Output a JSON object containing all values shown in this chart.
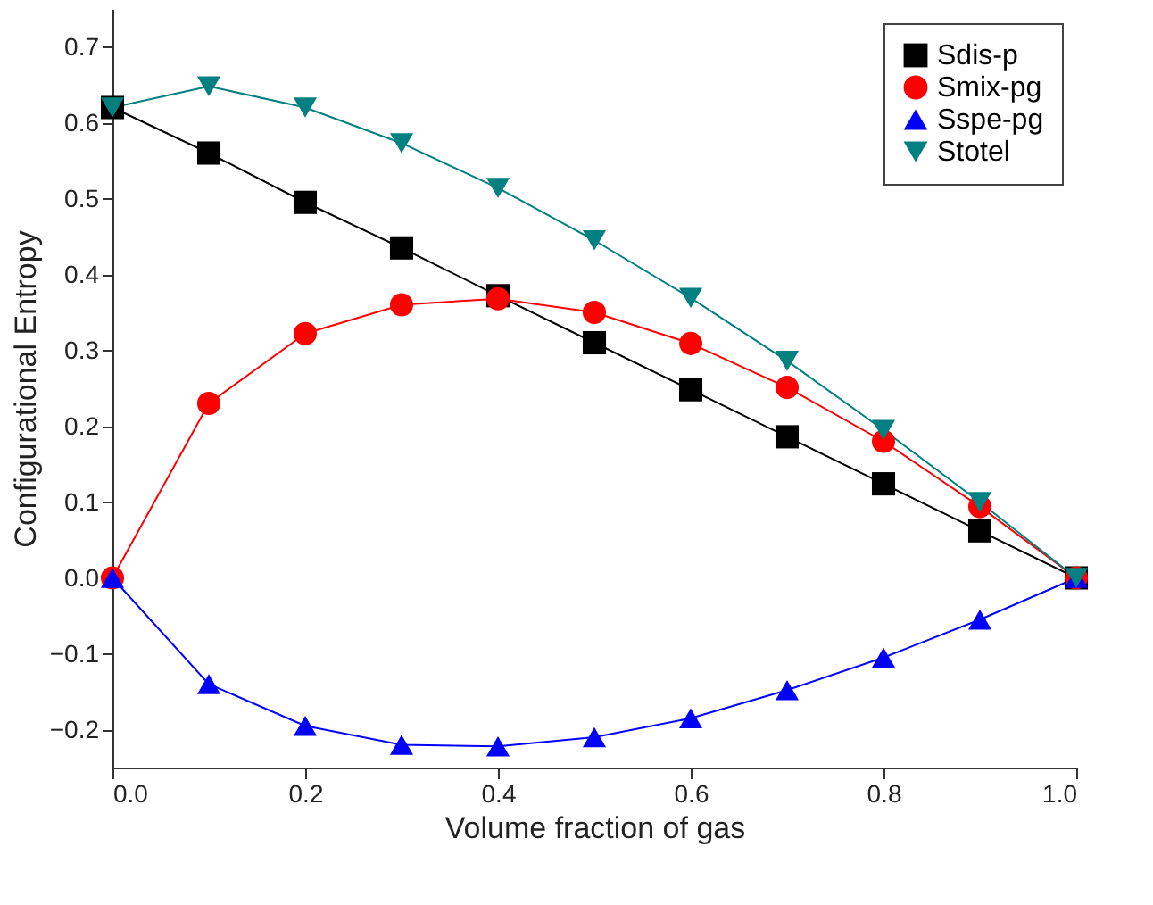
{
  "chart_data": {
    "type": "line",
    "xlabel": "Volume fraction of gas",
    "ylabel": "Configurational Entropy",
    "x": [
      0.0,
      0.1,
      0.2,
      0.3,
      0.4,
      0.5,
      0.6,
      0.7,
      0.8,
      0.9,
      1.0
    ],
    "series": [
      {
        "name": "Sdis-p",
        "color": "#000000",
        "marker": "square",
        "values": [
          0.62,
          0.56,
          0.495,
          0.435,
          0.372,
          0.31,
          0.248,
          0.186,
          0.124,
          0.062,
          0.0
        ]
      },
      {
        "name": "Smix-pg",
        "color": "#ff0000",
        "marker": "circle",
        "values": [
          0.0,
          0.23,
          0.322,
          0.36,
          0.368,
          0.35,
          0.309,
          0.251,
          0.18,
          0.094,
          0.0
        ]
      },
      {
        "name": "Sspe-pg",
        "color": "#0000ff",
        "marker": "triangle",
        "values": [
          0.0,
          -0.14,
          -0.195,
          -0.22,
          -0.222,
          -0.21,
          -0.185,
          -0.148,
          -0.105,
          -0.055,
          0.0
        ]
      },
      {
        "name": "Stotel",
        "color": "#008080",
        "marker": "triangle-down",
        "values": [
          0.62,
          0.648,
          0.62,
          0.573,
          0.514,
          0.445,
          0.369,
          0.286,
          0.195,
          0.1,
          0.0
        ]
      }
    ],
    "xlim": [
      0.0,
      1.0
    ],
    "xticks": [
      {
        "value": 0.0,
        "label": "0.0"
      },
      0.2,
      0.4,
      0.6,
      0.8,
      {
        "value": 1.0,
        "label": "1.0"
      }
    ],
    "ylim": [
      -0.25,
      0.75
    ],
    "yticks": [
      -0.2,
      -0.1,
      {
        "value": 0.0,
        "label": "0.0"
      },
      0.1,
      0.2,
      0.3,
      0.4,
      0.5,
      0.6,
      0.7
    ],
    "grid": false,
    "legend": "top right",
    "line_style": "solid"
  }
}
